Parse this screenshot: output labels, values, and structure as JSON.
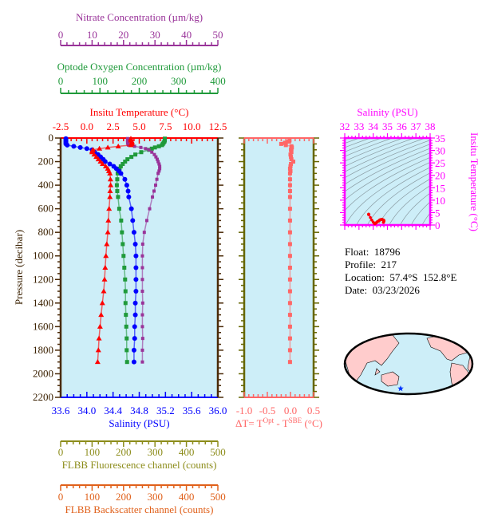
{
  "info": {
    "float_label": "Float:",
    "float": "18796",
    "profile_label": "Profile:",
    "profile": "217",
    "location_label": "Location:",
    "location": "57.4°S  152.8°E",
    "date_label": "Date:",
    "date": "03/23/2026"
  },
  "colors": {
    "temperature": "#ff0000",
    "salinity": "#0000ff",
    "oxygen": "#1f9a3a",
    "nitrate": "#993399",
    "fluorescence": "#8c8c1a",
    "backscatter": "#e0601a",
    "delta_t": "#ff6666",
    "ts": "#ff00ff",
    "plot_bg": "#cdeef8",
    "frame": "#4a2a08",
    "land": "#ffcccc"
  },
  "chart_data": [
    {
      "type": "line",
      "ylabel": "Pressure (decibar)",
      "ylim": [
        2200,
        0
      ],
      "yticks": [
        "0",
        "200",
        "400",
        "600",
        "800",
        "1000",
        "1200",
        "1400",
        "1600",
        "1800",
        "2000",
        "2200"
      ],
      "axes": {
        "temperature": {
          "title": "Insitu Temperature (°C)",
          "range": [
            -2.5,
            12.5
          ],
          "ticks": [
            "-2.5",
            "0.0",
            "2.5",
            "5.0",
            "7.5",
            "10.0",
            "12.5"
          ]
        },
        "salinity": {
          "title": "Salinity (PSU)",
          "range": [
            33.6,
            36.0
          ],
          "ticks": [
            "33.6",
            "34.0",
            "34.4",
            "34.8",
            "35.2",
            "35.6",
            "36.0"
          ]
        },
        "oxygen": {
          "title": "Optode Oxygen Concentration (µm/kg)",
          "range": [
            0,
            400
          ],
          "ticks": [
            "0",
            "100",
            "200",
            "300",
            "400"
          ]
        },
        "nitrate": {
          "title": "Nitrate Concentration (µm/kg)",
          "range": [
            0,
            50
          ],
          "ticks": [
            "0",
            "10",
            "20",
            "30",
            "40",
            "50"
          ]
        },
        "fluorescence": {
          "title": "FLBB Fluorescence channel (counts)",
          "range": [
            0,
            500
          ],
          "ticks": [
            "0",
            "100",
            "200",
            "300",
            "400",
            "500"
          ]
        },
        "backscatter": {
          "title": "FLBB Backscatter channel (counts)",
          "range": [
            0,
            500
          ],
          "ticks": [
            "0",
            "100",
            "200",
            "300",
            "400",
            "500"
          ]
        }
      },
      "series": [
        {
          "name": "Insitu Temperature",
          "axis": "temperature",
          "marker": "triangle",
          "p": [
            5,
            10,
            20,
            30,
            40,
            50,
            60,
            70,
            80,
            90,
            100,
            110,
            120,
            140,
            160,
            180,
            200,
            220,
            240,
            260,
            280,
            300,
            350,
            400,
            450,
            500,
            600,
            700,
            800,
            900,
            1000,
            1100,
            1200,
            1300,
            1400,
            1500,
            1600,
            1700,
            1800,
            1900
          ],
          "v": [
            4.2,
            4.2,
            4.2,
            4.3,
            4.3,
            4.3,
            4.2,
            3.0,
            2.0,
            1.2,
            0.6,
            0.5,
            0.5,
            0.7,
            0.9,
            1.1,
            1.3,
            1.5,
            1.8,
            2.0,
            2.1,
            2.2,
            2.25,
            2.27,
            2.22,
            2.2,
            2.12,
            2.05,
            2.0,
            1.9,
            1.82,
            1.75,
            1.69,
            1.61,
            1.48,
            1.36,
            1.26,
            1.16,
            1.1,
            1.03
          ]
        },
        {
          "name": "Salinity",
          "axis": "salinity",
          "marker": "circle",
          "p": [
            5,
            10,
            20,
            30,
            40,
            50,
            60,
            70,
            80,
            90,
            100,
            120,
            140,
            160,
            180,
            200,
            220,
            240,
            260,
            280,
            300,
            350,
            400,
            450,
            500,
            600,
            700,
            800,
            900,
            1000,
            1100,
            1200,
            1300,
            1400,
            1500,
            1600,
            1700,
            1800,
            1900
          ],
          "v": [
            33.68,
            33.68,
            33.68,
            33.68,
            33.68,
            33.68,
            33.7,
            33.8,
            33.9,
            34.0,
            34.08,
            34.12,
            34.17,
            34.21,
            34.25,
            34.28,
            34.35,
            34.41,
            34.45,
            34.49,
            34.52,
            34.58,
            34.61,
            34.63,
            34.64,
            34.68,
            34.7,
            34.72,
            34.74,
            34.75,
            34.75,
            34.75,
            34.75,
            34.74,
            34.74,
            34.73,
            34.73,
            34.72,
            34.72
          ]
        },
        {
          "name": "Optode Oxygen",
          "axis": "oxygen",
          "marker": "square",
          "p": [
            5,
            10,
            20,
            30,
            40,
            50,
            60,
            70,
            80,
            90,
            100,
            120,
            140,
            160,
            180,
            200,
            220,
            240,
            260,
            280,
            300,
            350,
            400,
            450,
            500,
            600,
            700,
            800,
            900,
            1000,
            1100,
            1200,
            1300,
            1400,
            1500,
            1600,
            1700,
            1800,
            1900
          ],
          "v": [
            265,
            265,
            265,
            264,
            262,
            260,
            258,
            250,
            240,
            232,
            225,
            205,
            190,
            180,
            170,
            164,
            158,
            153,
            150,
            147,
            145,
            144,
            143,
            144,
            146,
            149,
            154,
            156,
            158,
            160,
            162,
            164,
            165,
            165,
            166,
            167,
            168,
            168,
            169
          ]
        },
        {
          "name": "Nitrate",
          "axis": "nitrate",
          "marker": "smallsquare",
          "p": [
            5,
            10,
            20,
            30,
            40,
            50,
            60,
            70,
            80,
            90,
            100,
            120,
            140,
            160,
            180,
            200,
            220,
            240,
            260,
            280,
            300,
            350,
            400,
            450,
            500,
            600,
            700,
            800,
            900,
            1000,
            1100,
            1200,
            1300,
            1400,
            1500,
            1600,
            1700,
            1800,
            1900
          ],
          "v": [
            21.3,
            21.3,
            21.3,
            21.3,
            21.3,
            21.4,
            21.6,
            23.5,
            25.5,
            27.0,
            28.1,
            29.0,
            29.8,
            30.3,
            30.7,
            31.0,
            31.3,
            31.5,
            31.5,
            31.3,
            31.0,
            30.6,
            30.2,
            29.7,
            29.2,
            28.3,
            27.4,
            26.6,
            26.1,
            26.0,
            26.0,
            26.0,
            26.0,
            26.1,
            26.0,
            26.0,
            26.1,
            26.0,
            26.0
          ]
        }
      ]
    },
    {
      "type": "line",
      "xlabel_prefix": "ΔT= T",
      "xlabel_sup1": "Opt",
      "xlabel_mid": " - T",
      "xlabel_sup2": "SBE",
      "xlabel_suffix": " (°C)",
      "xlim": [
        -1.0,
        0.5
      ],
      "ylim": [
        2200,
        0
      ],
      "xticks": [
        "-1.0",
        "-0.5",
        "0.0",
        "0.5"
      ],
      "series": [
        {
          "p": [
            20,
            30,
            40,
            50,
            60,
            70,
            80,
            90,
            100,
            120,
            140,
            160,
            180,
            200,
            220,
            240,
            260,
            280,
            300,
            350,
            400,
            450,
            500,
            600,
            700,
            800,
            900,
            1000,
            1100,
            1200,
            1300,
            1400,
            1500,
            1600,
            1700,
            1800,
            1900
          ],
          "v": [
            -0.02,
            -0.04,
            -0.12,
            -0.2,
            -0.1,
            0.02,
            0.03,
            0.02,
            0.01,
            0.02,
            0.0,
            0.01,
            0.02,
            0.06,
            0.01,
            0.0,
            -0.01,
            0.0,
            -0.01,
            -0.01,
            -0.01,
            -0.01,
            -0.01,
            -0.01,
            -0.01,
            -0.01,
            -0.01,
            -0.01,
            -0.01,
            -0.01,
            -0.01,
            -0.01,
            -0.01,
            -0.01,
            -0.01,
            -0.01,
            -0.01
          ]
        }
      ]
    },
    {
      "type": "scatter",
      "xlabel": "Salinity (PSU)",
      "ylabel": "Insitu Temperature (°C)",
      "xlim": [
        32,
        38
      ],
      "ylim": [
        0,
        35
      ],
      "xticks": [
        "32",
        "33",
        "34",
        "35",
        "36",
        "37",
        "38"
      ],
      "yticks": [
        "0",
        "5",
        "10",
        "15",
        "20",
        "25",
        "30",
        "35"
      ],
      "isopycnals": true
    }
  ]
}
